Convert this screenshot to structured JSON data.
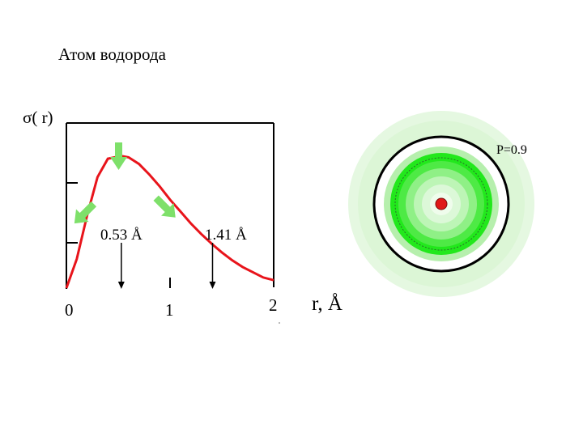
{
  "title": "Атом водорода",
  "y_axis_label": "σ( r)",
  "x_axis_label": "r, Å",
  "x_ticks": [
    "0",
    "1",
    "2"
  ],
  "peak_label": "0.53 Å",
  "mean_label": "1.41 Å",
  "probability_label": "P=0.9",
  "colors": {
    "curve": "#e8141b",
    "arrow": "#7ee06a",
    "ring_bright": "#22e81c",
    "ring_pale": "#dcf7d8",
    "nucleus": "#e01818"
  },
  "chart_data": {
    "type": "line",
    "title": "Атом водорода",
    "xlabel": "r, Å",
    "ylabel": "σ( r)",
    "xlim": [
      0,
      2
    ],
    "ylim": [
      0,
      1.25
    ],
    "x": [
      0,
      0.1,
      0.2,
      0.3,
      0.4,
      0.53,
      0.6,
      0.7,
      0.8,
      0.9,
      1.0,
      1.1,
      1.2,
      1.3,
      1.41,
      1.5,
      1.6,
      1.7,
      1.8,
      1.9,
      2.0
    ],
    "series": [
      {
        "values": [
          0,
          0.22,
          0.55,
          0.84,
          0.98,
          1.0,
          0.99,
          0.94,
          0.86,
          0.77,
          0.67,
          0.58,
          0.49,
          0.41,
          0.33,
          0.27,
          0.21,
          0.16,
          0.12,
          0.08,
          0.06
        ]
      }
    ],
    "annotations": [
      {
        "x": 0.53,
        "text": "0.53 Å"
      },
      {
        "x": 1.41,
        "text": "1.41 Å"
      }
    ]
  }
}
